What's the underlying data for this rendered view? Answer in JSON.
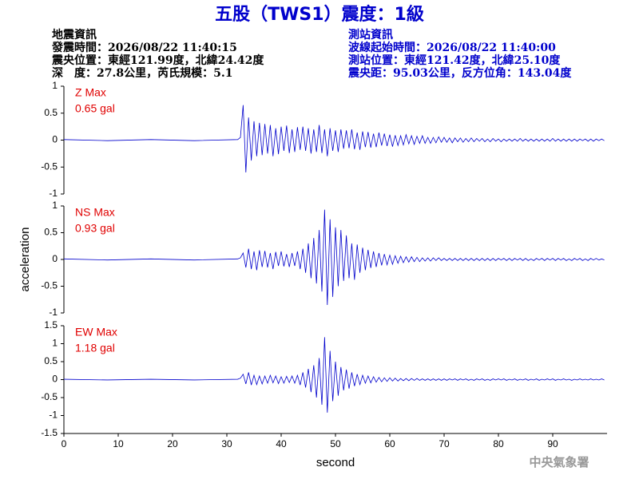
{
  "header": {
    "title": "五股（TWS1）震度：1級",
    "left": [
      "地震資訊",
      "發震時間：2026/08/22 11:40:15",
      "震央位置：東經121.99度，北緯24.42度",
      "深　度：27.8公里，芮氏規模：5.1"
    ],
    "right": [
      "測站資訊",
      "波線起始時間：2026/08/22 11:40:00",
      "測站位置：東經121.42度，北緯25.10度",
      "震央距：95.03公里，反方位角：143.04度"
    ],
    "footer": "中央氣象署"
  },
  "chart_data": [
    {
      "type": "line",
      "color": "#0000cc",
      "annotations": [
        "Z Max",
        "0.65 gal"
      ],
      "xlim": [
        0,
        100
      ],
      "ylim": [
        -1,
        1
      ],
      "yticks": [
        -1,
        -0.5,
        0,
        0.5,
        1
      ],
      "x": [
        0,
        8,
        16,
        24,
        32,
        32.5,
        33,
        33.5,
        34,
        34.5,
        35,
        35.5,
        36,
        36.5,
        37,
        37.5,
        38,
        38.5,
        39,
        39.5,
        40,
        40.5,
        41,
        41.5,
        42,
        42.5,
        43,
        43.5,
        44,
        44.5,
        45,
        45.5,
        46,
        46.5,
        47,
        47.5,
        48,
        48.5,
        49,
        49.5,
        50,
        50.5,
        51,
        51.5,
        52,
        52.5,
        53,
        53.5,
        54,
        54.5,
        55,
        55.5,
        56,
        56.5,
        57,
        57.5,
        58,
        58.5,
        59,
        59.5,
        60,
        60.5,
        61,
        61.5,
        62,
        62.5,
        63,
        63.5,
        64,
        64.5,
        65,
        65.5,
        66,
        66.5,
        67,
        67.5,
        68,
        68.5,
        69,
        69.5,
        70,
        70.5,
        71,
        71.5,
        72,
        72.5,
        73,
        73.5,
        74,
        74.5,
        75,
        75.5,
        76,
        76.5,
        77,
        77.5,
        78,
        78.5,
        79,
        79.5,
        80,
        80.5,
        81,
        81.5,
        82,
        82.5,
        83,
        83.5,
        84,
        84.5,
        85,
        85.5,
        86,
        86.5,
        87,
        87.5,
        88,
        88.5,
        89,
        89.5,
        90,
        90.5,
        91,
        91.5,
        92,
        92.5,
        93,
        93.5,
        94,
        94.5,
        95,
        95.5,
        96,
        96.5,
        97,
        97.5,
        98,
        98.5,
        99,
        99.5
      ],
      "values": [
        0.01,
        -0.01,
        0.01,
        -0.01,
        0.01,
        0.05,
        0.65,
        -0.6,
        0.42,
        -0.38,
        0.35,
        -0.3,
        0.32,
        -0.28,
        0.3,
        -0.25,
        0.28,
        -0.3,
        0.22,
        -0.26,
        0.25,
        -0.2,
        0.27,
        -0.24,
        0.2,
        -0.22,
        0.24,
        -0.18,
        0.25,
        -0.2,
        0.22,
        -0.25,
        0.2,
        -0.22,
        0.28,
        -0.24,
        0.2,
        -0.3,
        0.22,
        -0.2,
        0.18,
        -0.22,
        0.2,
        -0.16,
        0.18,
        -0.15,
        0.2,
        -0.17,
        0.14,
        -0.18,
        0.16,
        -0.13,
        0.15,
        -0.14,
        0.12,
        -0.13,
        0.14,
        -0.1,
        0.12,
        -0.11,
        0.1,
        -0.12,
        0.09,
        -0.1,
        0.08,
        -0.09,
        0.1,
        -0.07,
        0.08,
        -0.08,
        0.07,
        -0.06,
        0.08,
        -0.06,
        0.05,
        -0.06,
        0.05,
        -0.05,
        0.06,
        -0.04,
        0.05,
        -0.04,
        0.04,
        -0.05,
        0.04,
        -0.03,
        0.04,
        -0.04,
        0.03,
        -0.03,
        0.04,
        -0.03,
        0.03,
        -0.02,
        0.03,
        -0.03,
        0.02,
        -0.03,
        0.03,
        -0.02,
        0.02,
        -0.03,
        0.02,
        -0.02,
        0.02,
        -0.02,
        0.02,
        -0.02,
        0.03,
        -0.02,
        0.02,
        -0.02,
        0.02,
        -0.02,
        0.02,
        -0.02,
        0.02,
        -0.02,
        0.02,
        -0.02,
        0.03,
        -0.02,
        0.02,
        -0.02,
        0.02,
        -0.02,
        0.02,
        -0.02,
        0.02,
        -0.02,
        0.02,
        -0.01,
        0.02,
        -0.02,
        0.02,
        -0.02,
        0.02,
        -0.01,
        0.02,
        -0.01
      ]
    },
    {
      "type": "line",
      "color": "#0000cc",
      "annotations": [
        "NS Max",
        "0.93 gal"
      ],
      "ylabel": "acceleration",
      "xlim": [
        0,
        100
      ],
      "ylim": [
        -1,
        1
      ],
      "yticks": [
        -1,
        -0.5,
        0,
        0.5,
        1
      ],
      "x": [
        0,
        8,
        16,
        24,
        32,
        32.5,
        33,
        33.5,
        34,
        34.5,
        35,
        35.5,
        36,
        36.5,
        37,
        37.5,
        38,
        38.5,
        39,
        39.5,
        40,
        40.5,
        41,
        41.5,
        42,
        42.5,
        43,
        43.5,
        44,
        44.5,
        45,
        45.5,
        46,
        46.5,
        47,
        47.5,
        48,
        48.5,
        49,
        49.5,
        50,
        50.5,
        51,
        51.5,
        52,
        52.5,
        53,
        53.5,
        54,
        54.5,
        55,
        55.5,
        56,
        56.5,
        57,
        57.5,
        58,
        58.5,
        59,
        59.5,
        60,
        60.5,
        61,
        61.5,
        62,
        62.5,
        63,
        63.5,
        64,
        64.5,
        65,
        65.5,
        66,
        66.5,
        67,
        67.5,
        68,
        68.5,
        69,
        69.5,
        70,
        70.5,
        71,
        71.5,
        72,
        72.5,
        73,
        73.5,
        74,
        74.5,
        75,
        75.5,
        76,
        76.5,
        77,
        77.5,
        78,
        78.5,
        79,
        79.5,
        80,
        80.5,
        81,
        81.5,
        82,
        82.5,
        83,
        83.5,
        84,
        84.5,
        85,
        85.5,
        86,
        86.5,
        87,
        87.5,
        88,
        88.5,
        89,
        89.5,
        90,
        90.5,
        91,
        91.5,
        92,
        92.5,
        93,
        93.5,
        94,
        94.5,
        95,
        95.5,
        96,
        96.5,
        97,
        97.5,
        98,
        98.5,
        99,
        99.5
      ],
      "values": [
        0.01,
        -0.01,
        0.01,
        -0.01,
        0.01,
        0.03,
        0.12,
        -0.15,
        0.2,
        -0.18,
        0.15,
        -0.2,
        0.17,
        -0.14,
        0.16,
        -0.15,
        0.12,
        -0.18,
        0.14,
        -0.12,
        0.15,
        -0.13,
        0.1,
        -0.14,
        0.12,
        -0.12,
        0.15,
        -0.18,
        0.2,
        -0.25,
        0.3,
        -0.35,
        0.4,
        -0.45,
        0.55,
        -0.6,
        0.93,
        -0.85,
        0.75,
        -0.7,
        0.6,
        -0.5,
        0.55,
        -0.4,
        0.45,
        -0.35,
        0.3,
        -0.38,
        0.28,
        -0.25,
        0.22,
        -0.2,
        0.18,
        -0.16,
        0.15,
        -0.14,
        0.12,
        -0.11,
        0.1,
        -0.1,
        0.08,
        -0.09,
        0.07,
        -0.07,
        0.06,
        -0.06,
        0.05,
        -0.05,
        0.05,
        -0.04,
        0.04,
        -0.04,
        0.03,
        -0.03,
        0.03,
        -0.03,
        0.03,
        -0.02,
        0.03,
        -0.02,
        0.02,
        -0.02,
        0.02,
        -0.02,
        0.02,
        -0.02,
        0.02,
        -0.02,
        0.02,
        -0.02,
        0.02,
        -0.02,
        0.02,
        -0.02,
        0.02,
        -0.02,
        0.02,
        -0.02,
        0.02,
        -0.02,
        0.02,
        -0.01,
        0.02,
        -0.02,
        0.02,
        -0.02,
        0.02,
        -0.01,
        0.02,
        -0.02,
        0.02,
        -0.02,
        0.01,
        -0.02,
        0.02,
        -0.01,
        0.02,
        -0.02,
        0.02,
        -0.01,
        0.02,
        -0.02,
        0.02,
        -0.01,
        0.02,
        -0.02,
        0.01,
        -0.02,
        0.02,
        -0.01,
        0.02,
        -0.02,
        0.01,
        -0.02,
        0.02,
        -0.01,
        0.02,
        -0.01,
        0.01,
        -0.01
      ]
    },
    {
      "type": "line",
      "color": "#0000cc",
      "annotations": [
        "EW Max",
        "1.18 gal"
      ],
      "xlabel": "second",
      "xlim": [
        0,
        100
      ],
      "xticks": [
        0,
        10,
        20,
        30,
        40,
        50,
        60,
        70,
        80,
        90
      ],
      "ylim": [
        -1.5,
        1.5
      ],
      "yticks": [
        -1.5,
        -1,
        -0.5,
        0,
        0.5,
        1,
        1.5
      ],
      "x": [
        0,
        8,
        16,
        24,
        32,
        32.5,
        33,
        33.5,
        34,
        34.5,
        35,
        35.5,
        36,
        36.5,
        37,
        37.5,
        38,
        38.5,
        39,
        39.5,
        40,
        40.5,
        41,
        41.5,
        42,
        42.5,
        43,
        43.5,
        44,
        44.5,
        45,
        45.5,
        46,
        46.5,
        47,
        47.5,
        48,
        48.5,
        49,
        49.5,
        50,
        50.5,
        51,
        51.5,
        52,
        52.5,
        53,
        53.5,
        54,
        54.5,
        55,
        55.5,
        56,
        56.5,
        57,
        57.5,
        58,
        58.5,
        59,
        59.5,
        60,
        60.5,
        61,
        61.5,
        62,
        62.5,
        63,
        63.5,
        64,
        64.5,
        65,
        65.5,
        66,
        66.5,
        67,
        67.5,
        68,
        68.5,
        69,
        69.5,
        70,
        70.5,
        71,
        71.5,
        72,
        72.5,
        73,
        73.5,
        74,
        74.5,
        75,
        75.5,
        76,
        76.5,
        77,
        77.5,
        78,
        78.5,
        79,
        79.5,
        80,
        80.5,
        81,
        81.5,
        82,
        82.5,
        83,
        83.5,
        84,
        84.5,
        85,
        85.5,
        86,
        86.5,
        87,
        87.5,
        88,
        88.5,
        89,
        89.5,
        90,
        90.5,
        91,
        91.5,
        92,
        92.5,
        93,
        93.5,
        94,
        94.5,
        95,
        95.5,
        96,
        96.5,
        97,
        97.5,
        98,
        98.5,
        99,
        99.5
      ],
      "values": [
        0.01,
        -0.01,
        0.01,
        -0.01,
        0.01,
        0.04,
        0.15,
        -0.12,
        0.2,
        -0.15,
        0.12,
        -0.14,
        0.1,
        -0.12,
        0.1,
        -0.1,
        0.12,
        -0.09,
        0.1,
        -0.11,
        0.08,
        -0.1,
        0.09,
        -0.08,
        0.1,
        -0.1,
        0.12,
        -0.15,
        0.2,
        -0.22,
        0.3,
        -0.35,
        0.4,
        -0.5,
        0.6,
        -0.7,
        1.18,
        -0.92,
        0.8,
        -0.6,
        0.5,
        -0.45,
        0.35,
        -0.3,
        0.28,
        -0.25,
        0.2,
        -0.18,
        0.15,
        -0.14,
        0.12,
        -0.1,
        0.1,
        -0.09,
        0.08,
        -0.07,
        0.06,
        -0.06,
        0.05,
        -0.05,
        0.05,
        -0.04,
        0.04,
        -0.04,
        0.03,
        -0.03,
        0.03,
        -0.03,
        0.03,
        -0.02,
        0.03,
        -0.02,
        0.02,
        -0.02,
        0.02,
        -0.02,
        0.02,
        -0.02,
        0.02,
        -0.02,
        0.02,
        -0.02,
        0.02,
        -0.01,
        0.02,
        -0.02,
        0.02,
        -0.01,
        0.02,
        -0.02,
        0.01,
        -0.02,
        0.02,
        -0.01,
        0.02,
        -0.02,
        0.01,
        -0.02,
        0.02,
        -0.01,
        0.02,
        -0.01,
        0.02,
        -0.02,
        0.01,
        -0.01,
        0.02,
        -0.02,
        0.01,
        -0.01,
        0.02,
        -0.02,
        0.01,
        -0.01,
        0.02,
        -0.02,
        0.01,
        -0.01,
        0.02,
        -0.01,
        0.02,
        -0.02,
        0.01,
        -0.01,
        0.02,
        -0.01,
        0.01,
        -0.02,
        0.01,
        -0.01,
        0.02,
        -0.01,
        0.01,
        -0.01,
        0.02,
        -0.01,
        0.01,
        -0.01,
        0.02,
        -0.01
      ]
    }
  ]
}
